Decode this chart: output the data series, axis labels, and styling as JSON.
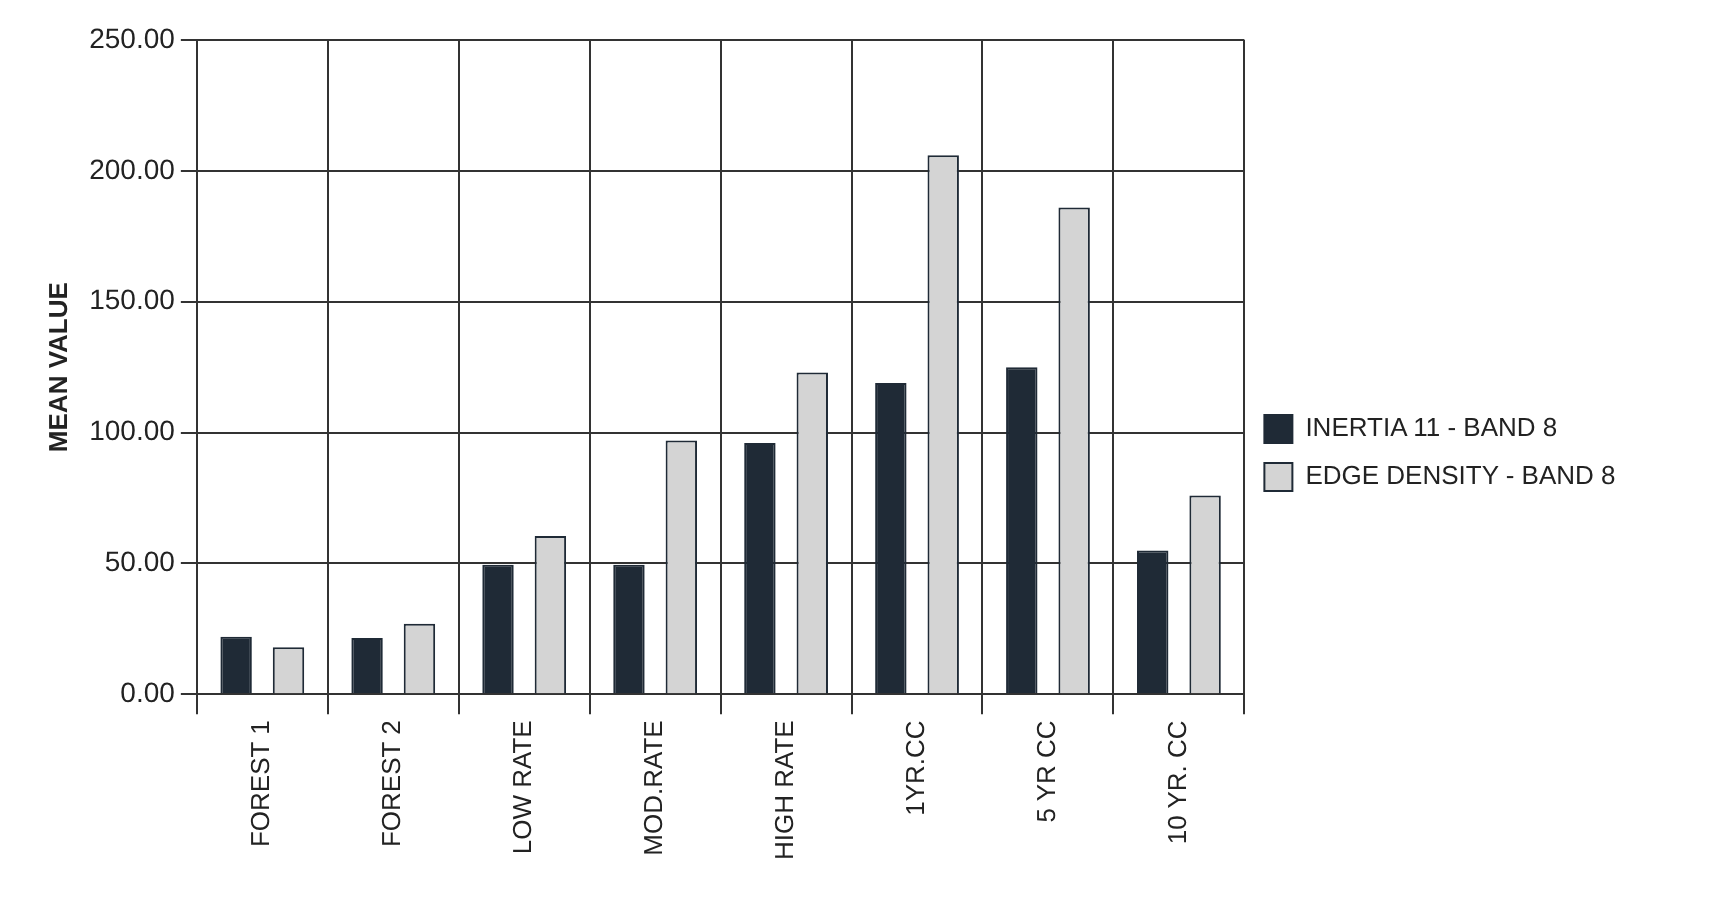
{
  "chart_data": {
    "type": "bar",
    "ylabel": "MEAN VALUE",
    "categories": [
      "FOREST 1",
      "FOREST 2",
      "LOW RATE",
      "MOD.RATE",
      "HIGH RATE",
      "1YR.CC",
      "5 YR CC",
      "10 YR. CC"
    ],
    "series": [
      {
        "name": "INERTIA 11 - BAND 8",
        "color": "#1f2a36",
        "values": [
          22,
          21.5,
          49.5,
          49.5,
          96,
          119,
          125,
          55
        ]
      },
      {
        "name": "EDGE DENSITY - BAND 8",
        "color": "#d4d4d4",
        "values": [
          18,
          27,
          60.5,
          97,
          123,
          206,
          186,
          76
        ]
      }
    ],
    "ylim": [
      0,
      250
    ],
    "yticks": [
      {
        "value": 0,
        "label": "0.00"
      },
      {
        "value": 50,
        "label": "50.00"
      },
      {
        "value": 100,
        "label": "100.00"
      },
      {
        "value": 150,
        "label": "150.00"
      },
      {
        "value": 200,
        "label": "200.00"
      },
      {
        "value": 250,
        "label": "250.00"
      }
    ],
    "grid": true,
    "legend": "right"
  }
}
